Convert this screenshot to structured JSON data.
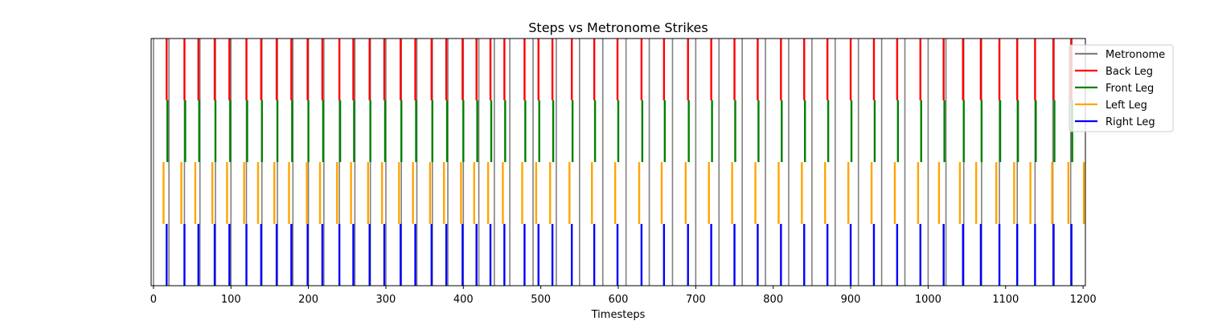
{
  "chart_data": {
    "type": "event-lines",
    "title": "Steps vs Metronome Strikes",
    "xlabel": "Timesteps",
    "ylabel": "",
    "xlim": [
      -3,
      1203
    ],
    "xticks": [
      0,
      100,
      200,
      300,
      400,
      500,
      600,
      700,
      800,
      900,
      1000,
      1100,
      1200
    ],
    "grid": false,
    "legend_position": "upper-right",
    "series": [
      {
        "name": "Metronome",
        "color": "#808080",
        "row": "full",
        "values": [
          0,
          20,
          40,
          60,
          80,
          100,
          120,
          140,
          160,
          180,
          200,
          220,
          240,
          260,
          280,
          300,
          320,
          340,
          360,
          380,
          400,
          420,
          440,
          460,
          490,
          520,
          550,
          580,
          610,
          640,
          670,
          700,
          730,
          760,
          790,
          820,
          850,
          880,
          910,
          940,
          970,
          1000,
          1023,
          1046,
          1069,
          1092,
          1115,
          1138,
          1161,
          1184
        ]
      },
      {
        "name": "Back Leg",
        "color": "#ff0000",
        "row": 3,
        "values": [
          17,
          40,
          58,
          79,
          98,
          120,
          139,
          159,
          178,
          199,
          218,
          240,
          258,
          279,
          298,
          319,
          338,
          359,
          378,
          399,
          417,
          435,
          453,
          479,
          497,
          515,
          540,
          569,
          599,
          630,
          659,
          690,
          720,
          750,
          780,
          810,
          840,
          870,
          900,
          930,
          960,
          990,
          1020,
          1045,
          1068,
          1092,
          1115,
          1138,
          1162,
          1185
        ]
      },
      {
        "name": "Front Leg",
        "color": "#008000",
        "row": 2,
        "values": [
          18,
          41,
          59,
          80,
          99,
          121,
          140,
          160,
          179,
          200,
          219,
          241,
          259,
          280,
          299,
          320,
          339,
          360,
          379,
          400,
          418,
          436,
          454,
          480,
          498,
          516,
          541,
          570,
          600,
          631,
          660,
          691,
          721,
          751,
          781,
          811,
          841,
          871,
          901,
          931,
          961,
          991,
          1021,
          1046,
          1069,
          1093,
          1116,
          1139,
          1163,
          1186
        ]
      },
      {
        "name": "Left Leg",
        "color": "#ffa500",
        "row": 1,
        "values": [
          13,
          36,
          54,
          76,
          95,
          117,
          135,
          156,
          175,
          198,
          215,
          237,
          255,
          277,
          295,
          317,
          335,
          357,
          375,
          397,
          414,
          432,
          451,
          476,
          494,
          512,
          537,
          566,
          596,
          627,
          656,
          687,
          717,
          747,
          777,
          807,
          837,
          867,
          897,
          927,
          957,
          987,
          1014,
          1041,
          1062,
          1088,
          1111,
          1132,
          1160,
          1181,
          1201
        ]
      },
      {
        "name": "Right Leg",
        "color": "#0000ff",
        "row": 0,
        "values": [
          17,
          40,
          58,
          79,
          98,
          120,
          139,
          159,
          178,
          199,
          218,
          240,
          258,
          279,
          298,
          319,
          338,
          359,
          378,
          399,
          417,
          435,
          453,
          479,
          497,
          515,
          540,
          569,
          599,
          630,
          659,
          690,
          720,
          750,
          780,
          810,
          840,
          870,
          900,
          930,
          960,
          990,
          1020,
          1045,
          1068,
          1092,
          1115,
          1138,
          1162,
          1185
        ]
      }
    ]
  }
}
